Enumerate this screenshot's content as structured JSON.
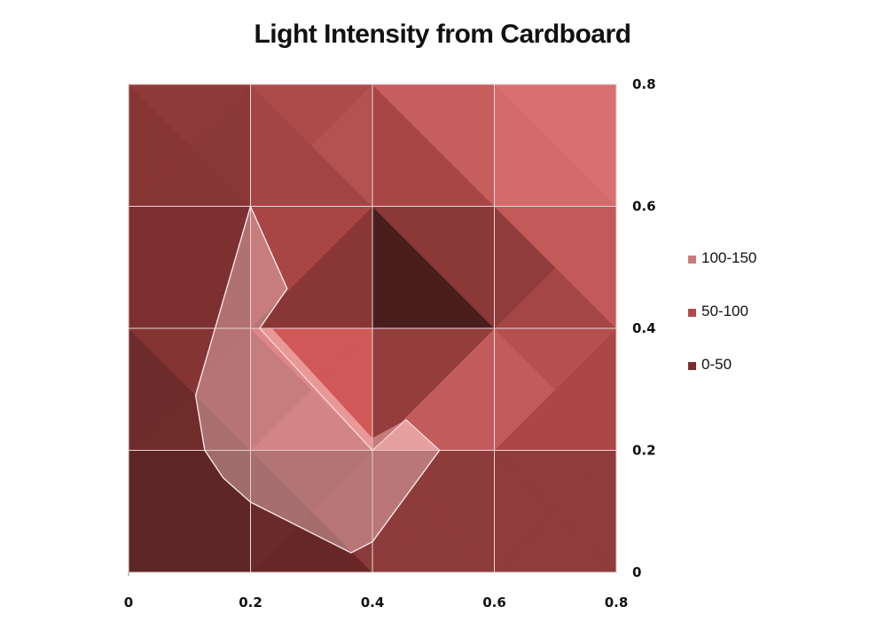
{
  "chart_data": {
    "type": "heatmap",
    "subtype": "surface-contour",
    "title": "Light Intensity from Cardboard",
    "x_ticks": [
      "0",
      "0.2",
      "0.4",
      "0.6",
      "0.8"
    ],
    "y_ticks": [
      "0",
      "0.2",
      "0.4",
      "0.6",
      "0.8"
    ],
    "xlim": [
      0,
      0.8
    ],
    "ylim": [
      0,
      0.8
    ],
    "y_axis_side": "right",
    "grid": true,
    "legend_position": "right",
    "legend": [
      {
        "label": "100-150",
        "color": "#c97b7b"
      },
      {
        "label": "50-100",
        "color": "#b04a4a"
      },
      {
        "label": "0-50",
        "color": "#7a2e2e"
      }
    ],
    "grid_x": [
      0,
      0.2,
      0.4,
      0.6,
      0.8
    ],
    "grid_y": [
      0,
      0.2,
      0.4,
      0.6,
      0.8
    ],
    "triangles": [
      {
        "pts": [
          [
            0,
            0
          ],
          [
            0.2,
            0
          ],
          [
            0.1,
            0.1
          ]
        ],
        "color": "#5e2626"
      },
      {
        "pts": [
          [
            0,
            0
          ],
          [
            0.1,
            0.1
          ],
          [
            0,
            0.2
          ]
        ],
        "color": "#5e2626"
      },
      {
        "pts": [
          [
            0.2,
            0
          ],
          [
            0.2,
            0.2
          ],
          [
            0.1,
            0.1
          ]
        ],
        "color": "#5e2626"
      },
      {
        "pts": [
          [
            0,
            0.2
          ],
          [
            0.1,
            0.1
          ],
          [
            0.2,
            0.2
          ]
        ],
        "color": "#5e2626"
      },
      {
        "pts": [
          [
            0.2,
            0
          ],
          [
            0.4,
            0
          ],
          [
            0.3,
            0.1
          ]
        ],
        "color": "#682727"
      },
      {
        "pts": [
          [
            0.2,
            0
          ],
          [
            0.3,
            0.1
          ],
          [
            0.2,
            0.2
          ]
        ],
        "color": "#6b2a2a"
      },
      {
        "pts": [
          [
            0.4,
            0
          ],
          [
            0.4,
            0.2
          ],
          [
            0.3,
            0.1
          ]
        ],
        "color": "#8a3a3a"
      },
      {
        "pts": [
          [
            0.2,
            0.2
          ],
          [
            0.3,
            0.1
          ],
          [
            0.4,
            0.2
          ]
        ],
        "color": "#7e3333"
      },
      {
        "pts": [
          [
            0.4,
            0
          ],
          [
            0.6,
            0
          ],
          [
            0.5,
            0.1
          ]
        ],
        "color": "#8e3b3b"
      },
      {
        "pts": [
          [
            0.4,
            0
          ],
          [
            0.5,
            0.1
          ],
          [
            0.4,
            0.2
          ]
        ],
        "color": "#8e3b3b"
      },
      {
        "pts": [
          [
            0.6,
            0
          ],
          [
            0.6,
            0.2
          ],
          [
            0.5,
            0.1
          ]
        ],
        "color": "#8e3b3b"
      },
      {
        "pts": [
          [
            0.4,
            0.2
          ],
          [
            0.5,
            0.1
          ],
          [
            0.6,
            0.2
          ]
        ],
        "color": "#8e3b3b"
      },
      {
        "pts": [
          [
            0.6,
            0
          ],
          [
            0.8,
            0
          ],
          [
            0.7,
            0.1
          ]
        ],
        "color": "#903c3c"
      },
      {
        "pts": [
          [
            0.6,
            0
          ],
          [
            0.7,
            0.1
          ],
          [
            0.6,
            0.2
          ]
        ],
        "color": "#903c3c"
      },
      {
        "pts": [
          [
            0.8,
            0
          ],
          [
            0.8,
            0.2
          ],
          [
            0.7,
            0.1
          ]
        ],
        "color": "#903c3c"
      },
      {
        "pts": [
          [
            0.6,
            0.2
          ],
          [
            0.7,
            0.1
          ],
          [
            0.8,
            0.2
          ]
        ],
        "color": "#903c3c"
      },
      {
        "pts": [
          [
            0,
            0.2
          ],
          [
            0.2,
            0.2
          ],
          [
            0.1,
            0.3
          ]
        ],
        "color": "#702b2b"
      },
      {
        "pts": [
          [
            0,
            0.2
          ],
          [
            0.1,
            0.3
          ],
          [
            0,
            0.4
          ]
        ],
        "color": "#6e2b2b"
      },
      {
        "pts": [
          [
            0.2,
            0.2
          ],
          [
            0.2,
            0.4
          ],
          [
            0.1,
            0.3
          ]
        ],
        "color": "#883636"
      },
      {
        "pts": [
          [
            0,
            0.4
          ],
          [
            0.1,
            0.3
          ],
          [
            0.2,
            0.4
          ]
        ],
        "color": "#853434"
      },
      {
        "pts": [
          [
            0.2,
            0.2
          ],
          [
            0.4,
            0.2
          ],
          [
            0.3,
            0.3
          ]
        ],
        "color": "#b85454"
      },
      {
        "pts": [
          [
            0.2,
            0.2
          ],
          [
            0.3,
            0.3
          ],
          [
            0.2,
            0.4
          ]
        ],
        "color": "#a44545"
      },
      {
        "pts": [
          [
            0.4,
            0.2
          ],
          [
            0.4,
            0.4
          ],
          [
            0.3,
            0.3
          ]
        ],
        "color": "#d15858"
      },
      {
        "pts": [
          [
            0.2,
            0.4
          ],
          [
            0.3,
            0.3
          ],
          [
            0.4,
            0.4
          ]
        ],
        "color": "#d15858"
      },
      {
        "pts": [
          [
            0.4,
            0.2
          ],
          [
            0.6,
            0.2
          ],
          [
            0.5,
            0.3
          ]
        ],
        "color": "#c25c5c"
      },
      {
        "pts": [
          [
            0.4,
            0.2
          ],
          [
            0.5,
            0.3
          ],
          [
            0.4,
            0.4
          ]
        ],
        "color": "#933d3d"
      },
      {
        "pts": [
          [
            0.6,
            0.2
          ],
          [
            0.6,
            0.4
          ],
          [
            0.5,
            0.3
          ]
        ],
        "color": "#c25c5c"
      },
      {
        "pts": [
          [
            0.4,
            0.4
          ],
          [
            0.5,
            0.3
          ],
          [
            0.6,
            0.4
          ]
        ],
        "color": "#933d3d"
      },
      {
        "pts": [
          [
            0.6,
            0.2
          ],
          [
            0.8,
            0.2
          ],
          [
            0.7,
            0.3
          ]
        ],
        "color": "#ab4747"
      },
      {
        "pts": [
          [
            0.6,
            0.2
          ],
          [
            0.7,
            0.3
          ],
          [
            0.6,
            0.4
          ]
        ],
        "color": "#c25c5c"
      },
      {
        "pts": [
          [
            0.8,
            0.2
          ],
          [
            0.8,
            0.4
          ],
          [
            0.7,
            0.3
          ]
        ],
        "color": "#ab4747"
      },
      {
        "pts": [
          [
            0.6,
            0.4
          ],
          [
            0.7,
            0.3
          ],
          [
            0.8,
            0.4
          ]
        ],
        "color": "#b65050"
      },
      {
        "pts": [
          [
            0,
            0.4
          ],
          [
            0.2,
            0.4
          ],
          [
            0.1,
            0.5
          ]
        ],
        "color": "#7d3030"
      },
      {
        "pts": [
          [
            0,
            0.4
          ],
          [
            0.1,
            0.5
          ],
          [
            0,
            0.6
          ]
        ],
        "color": "#7d3030"
      },
      {
        "pts": [
          [
            0.2,
            0.4
          ],
          [
            0.2,
            0.6
          ],
          [
            0.1,
            0.5
          ]
        ],
        "color": "#7d3030"
      },
      {
        "pts": [
          [
            0,
            0.6
          ],
          [
            0.1,
            0.5
          ],
          [
            0.2,
            0.6
          ]
        ],
        "color": "#7d3030"
      },
      {
        "pts": [
          [
            0.2,
            0.4
          ],
          [
            0.4,
            0.4
          ],
          [
            0.3,
            0.5
          ]
        ],
        "color": "#883636"
      },
      {
        "pts": [
          [
            0.2,
            0.4
          ],
          [
            0.3,
            0.5
          ],
          [
            0.2,
            0.6
          ]
        ],
        "color": "#a84545"
      },
      {
        "pts": [
          [
            0.4,
            0.4
          ],
          [
            0.4,
            0.6
          ],
          [
            0.3,
            0.5
          ]
        ],
        "color": "#883636"
      },
      {
        "pts": [
          [
            0.2,
            0.6
          ],
          [
            0.3,
            0.5
          ],
          [
            0.4,
            0.6
          ]
        ],
        "color": "#a84545"
      },
      {
        "pts": [
          [
            0.4,
            0.4
          ],
          [
            0.6,
            0.4
          ],
          [
            0.5,
            0.5
          ]
        ],
        "color": "#4a1d1d"
      },
      {
        "pts": [
          [
            0.4,
            0.4
          ],
          [
            0.5,
            0.5
          ],
          [
            0.4,
            0.6
          ]
        ],
        "color": "#4a1d1d"
      },
      {
        "pts": [
          [
            0.6,
            0.4
          ],
          [
            0.6,
            0.6
          ],
          [
            0.5,
            0.5
          ]
        ],
        "color": "#8b3838"
      },
      {
        "pts": [
          [
            0.4,
            0.6
          ],
          [
            0.5,
            0.5
          ],
          [
            0.6,
            0.6
          ]
        ],
        "color": "#8b3838"
      },
      {
        "pts": [
          [
            0.6,
            0.4
          ],
          [
            0.8,
            0.4
          ],
          [
            0.7,
            0.5
          ]
        ],
        "color": "#a64545"
      },
      {
        "pts": [
          [
            0.6,
            0.4
          ],
          [
            0.7,
            0.5
          ],
          [
            0.6,
            0.6
          ]
        ],
        "color": "#913c3c"
      },
      {
        "pts": [
          [
            0.8,
            0.4
          ],
          [
            0.8,
            0.6
          ],
          [
            0.7,
            0.5
          ]
        ],
        "color": "#c25a5a"
      },
      {
        "pts": [
          [
            0.6,
            0.6
          ],
          [
            0.7,
            0.5
          ],
          [
            0.8,
            0.6
          ]
        ],
        "color": "#c25a5a"
      },
      {
        "pts": [
          [
            0,
            0.6
          ],
          [
            0.2,
            0.6
          ],
          [
            0.1,
            0.7
          ]
        ],
        "color": "#883535"
      },
      {
        "pts": [
          [
            0,
            0.6
          ],
          [
            0.1,
            0.7
          ],
          [
            0,
            0.8
          ]
        ],
        "color": "#883535"
      },
      {
        "pts": [
          [
            0.2,
            0.6
          ],
          [
            0.2,
            0.8
          ],
          [
            0.1,
            0.7
          ]
        ],
        "color": "#8b3838"
      },
      {
        "pts": [
          [
            0,
            0.8
          ],
          [
            0.1,
            0.7
          ],
          [
            0.2,
            0.8
          ]
        ],
        "color": "#8f3a3a"
      },
      {
        "pts": [
          [
            0.2,
            0.6
          ],
          [
            0.4,
            0.6
          ],
          [
            0.3,
            0.7
          ]
        ],
        "color": "#a44545"
      },
      {
        "pts": [
          [
            0.2,
            0.6
          ],
          [
            0.3,
            0.7
          ],
          [
            0.2,
            0.8
          ]
        ],
        "color": "#a44545"
      },
      {
        "pts": [
          [
            0.4,
            0.6
          ],
          [
            0.4,
            0.8
          ],
          [
            0.3,
            0.7
          ]
        ],
        "color": "#b45252"
      },
      {
        "pts": [
          [
            0.2,
            0.8
          ],
          [
            0.3,
            0.7
          ],
          [
            0.4,
            0.8
          ]
        ],
        "color": "#ad4b4b"
      },
      {
        "pts": [
          [
            0.4,
            0.6
          ],
          [
            0.6,
            0.6
          ],
          [
            0.5,
            0.7
          ]
        ],
        "color": "#a84646"
      },
      {
        "pts": [
          [
            0.4,
            0.6
          ],
          [
            0.5,
            0.7
          ],
          [
            0.4,
            0.8
          ]
        ],
        "color": "#a84646"
      },
      {
        "pts": [
          [
            0.6,
            0.6
          ],
          [
            0.6,
            0.8
          ],
          [
            0.5,
            0.7
          ]
        ],
        "color": "#c65e5e"
      },
      {
        "pts": [
          [
            0.4,
            0.8
          ],
          [
            0.5,
            0.7
          ],
          [
            0.6,
            0.8
          ]
        ],
        "color": "#c65e5e"
      },
      {
        "pts": [
          [
            0.6,
            0.6
          ],
          [
            0.8,
            0.6
          ],
          [
            0.7,
            0.7
          ]
        ],
        "color": "#d46b6b"
      },
      {
        "pts": [
          [
            0.6,
            0.6
          ],
          [
            0.7,
            0.7
          ],
          [
            0.6,
            0.8
          ]
        ],
        "color": "#d46b6b"
      },
      {
        "pts": [
          [
            0.8,
            0.6
          ],
          [
            0.8,
            0.8
          ],
          [
            0.7,
            0.7
          ]
        ],
        "color": "#d97070"
      },
      {
        "pts": [
          [
            0.6,
            0.8
          ],
          [
            0.7,
            0.7
          ],
          [
            0.8,
            0.8
          ]
        ],
        "color": "#d97070"
      }
    ],
    "overlays": [
      {
        "pts": [
          [
            0.2,
            0.6
          ],
          [
            0.26,
            0.465
          ],
          [
            0.215,
            0.4
          ],
          [
            0.4,
            0.2
          ],
          [
            0.455,
            0.25
          ],
          [
            0.51,
            0.2
          ],
          [
            0.4,
            0.05
          ],
          [
            0.365,
            0.032
          ],
          [
            0.2,
            0.115
          ],
          [
            0.155,
            0.155
          ],
          [
            0.125,
            0.2
          ],
          [
            0.11,
            0.29
          ],
          [
            0.2,
            0.6
          ]
        ],
        "fill": "#f0c0c0",
        "opacity": 0.45,
        "stroke": "#f4e6e6"
      },
      {
        "pts": [
          [
            0.215,
            0.4
          ],
          [
            0.4,
            0.2
          ],
          [
            0.4,
            0.22
          ],
          [
            0.235,
            0.4
          ]
        ],
        "fill": "#f4b3b3",
        "opacity": 0.7,
        "stroke": "none"
      },
      {
        "pts": [
          [
            0.4,
            0.22
          ],
          [
            0.455,
            0.25
          ],
          [
            0.51,
            0.2
          ],
          [
            0.4,
            0.2
          ]
        ],
        "fill": "#f2b0b0",
        "opacity": 0.55,
        "stroke": "none"
      }
    ]
  }
}
